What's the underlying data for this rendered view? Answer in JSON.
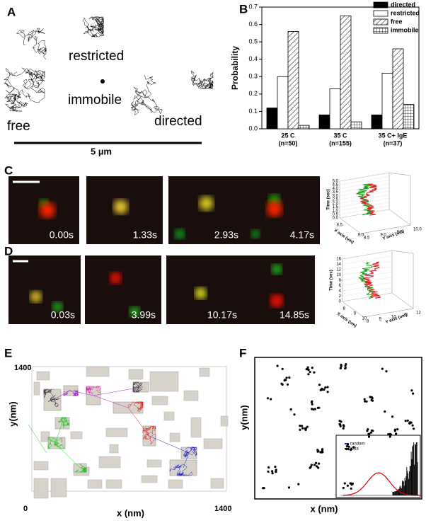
{
  "panel_labels": [
    "A",
    "B",
    "C",
    "D",
    "E",
    "F"
  ],
  "panel_a": {
    "labels": [
      "restricted",
      "immobile",
      "free",
      "directed"
    ],
    "scale_bar": "5 µm"
  },
  "chart_data": {
    "type": "bar",
    "ylabel": "Probability",
    "categories": [
      "25 C",
      "35 C",
      "35 C+ IgE"
    ],
    "category_notes": [
      "(n=50)",
      "(n=155)",
      "(n=37)"
    ],
    "series": [
      {
        "name": "directed",
        "color": "#000000",
        "pattern": "solid",
        "values": [
          0.12,
          0.08,
          0.08
        ]
      },
      {
        "name": "restricted",
        "color": "#ffffff",
        "pattern": "solid",
        "values": [
          0.3,
          0.23,
          0.32
        ]
      },
      {
        "name": "free",
        "color": "#ffffff",
        "pattern": "diagonal",
        "values": [
          0.56,
          0.65,
          0.46
        ]
      },
      {
        "name": "immobile",
        "color": "#ffffff",
        "pattern": "grid",
        "values": [
          0.02,
          0.04,
          0.14
        ]
      }
    ],
    "ylim": [
      0,
      0.7
    ],
    "yticks": [
      {
        "value": 0,
        "label": "0.0"
      },
      0.1,
      0.2,
      0.3,
      0.4,
      0.5,
      0.6,
      0.7
    ],
    "legend": "top right"
  },
  "panel_c": {
    "timestamps": [
      "0.00s",
      "1.33s",
      "2.93s",
      "4.17s"
    ],
    "plot": {
      "z_label": "Time (sec)",
      "x_label": "X axis (um)",
      "y_label": "Y axis (um)",
      "z_ticks": [
        "0.0",
        "0.5",
        "1.0",
        "1.5",
        "2.0",
        "2.5",
        "3.0",
        "3.5",
        "4.0",
        "4.5",
        "5.0"
      ],
      "x_ticks": [
        "8.5",
        "9.0"
      ],
      "y_ticks": [
        "8.5",
        "9.0",
        "9.5",
        "10.0"
      ]
    }
  },
  "panel_d": {
    "timestamps": [
      "0.03s",
      "3.99s",
      "10.17s",
      "14.85s"
    ],
    "plot": {
      "z_label": "Time (sec)",
      "x_label": "X axis (um)",
      "y_label": "Y axis (um)",
      "z_ticks": [
        "0",
        "2",
        "4",
        "6",
        "8",
        "10",
        "12",
        "14",
        "16"
      ],
      "x_ticks": [
        "8",
        "9",
        "10"
      ],
      "y_ticks": [
        "8",
        "9",
        "10",
        "11",
        "12"
      ]
    }
  },
  "panel_e": {
    "x_label": "x (nm)",
    "y_label": "y(nm)",
    "x_ticks": [
      "0",
      "1400"
    ],
    "y_ticks": [
      "1400"
    ]
  },
  "panel_f": {
    "x_label": "x (nm)",
    "y_label": "y(nm)",
    "inset_legend": [
      "random",
      "data"
    ]
  }
}
